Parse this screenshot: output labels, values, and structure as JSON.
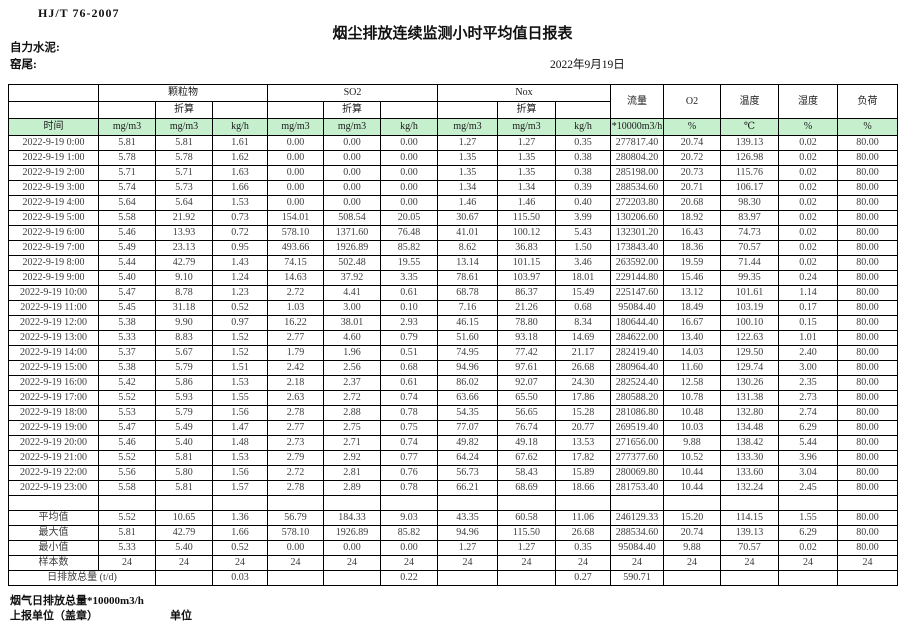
{
  "page": {
    "standard_code": "HJ/T 76-2007",
    "title": "烟尘排放连续监测小时平均值日报表",
    "company": "自力水泥:",
    "location": "窑尾:",
    "date": "2022年9月19日"
  },
  "table": {
    "time_header": "时间",
    "converted_label": "折算",
    "col_groups": [
      {
        "label": "颗粒物"
      },
      {
        "label": "SO2"
      },
      {
        "label": "Nox"
      }
    ],
    "single_columns": [
      "流量",
      "O2",
      "温度",
      "湿度",
      "负荷"
    ],
    "units": [
      "mg/m3",
      "mg/m3",
      "kg/h",
      "mg/m3",
      "mg/m3",
      "kg/h",
      "mg/m3",
      "mg/m3",
      "kg/h",
      "*10000m3/h",
      "%",
      "℃",
      "%",
      "%"
    ],
    "rows": [
      {
        "time": "2022-9-19 0:00",
        "values": [
          "5.81",
          "5.81",
          "1.61",
          "0.00",
          "0.00",
          "0.00",
          "1.27",
          "1.27",
          "0.35",
          "277817.40",
          "20.74",
          "139.13",
          "0.02",
          "80.00"
        ]
      },
      {
        "time": "2022-9-19 1:00",
        "values": [
          "5.78",
          "5.78",
          "1.62",
          "0.00",
          "0.00",
          "0.00",
          "1.35",
          "1.35",
          "0.38",
          "280804.20",
          "20.72",
          "126.98",
          "0.02",
          "80.00"
        ]
      },
      {
        "time": "2022-9-19 2:00",
        "values": [
          "5.71",
          "5.71",
          "1.63",
          "0.00",
          "0.00",
          "0.00",
          "1.35",
          "1.35",
          "0.38",
          "285198.00",
          "20.73",
          "115.76",
          "0.02",
          "80.00"
        ]
      },
      {
        "time": "2022-9-19 3:00",
        "values": [
          "5.74",
          "5.73",
          "1.66",
          "0.00",
          "0.00",
          "0.00",
          "1.34",
          "1.34",
          "0.39",
          "288534.60",
          "20.71",
          "106.17",
          "0.02",
          "80.00"
        ]
      },
      {
        "time": "2022-9-19 4:00",
        "values": [
          "5.64",
          "5.64",
          "1.53",
          "0.00",
          "0.00",
          "0.00",
          "1.46",
          "1.46",
          "0.40",
          "272203.80",
          "20.68",
          "98.30",
          "0.02",
          "80.00"
        ]
      },
      {
        "time": "2022-9-19 5:00",
        "values": [
          "5.58",
          "21.92",
          "0.73",
          "154.01",
          "508.54",
          "20.05",
          "30.67",
          "115.50",
          "3.99",
          "130206.60",
          "18.92",
          "83.97",
          "0.02",
          "80.00"
        ]
      },
      {
        "time": "2022-9-19 6:00",
        "values": [
          "5.46",
          "13.93",
          "0.72",
          "578.10",
          "1371.60",
          "76.48",
          "41.01",
          "100.12",
          "5.43",
          "132301.20",
          "16.43",
          "74.73",
          "0.02",
          "80.00"
        ]
      },
      {
        "time": "2022-9-19 7:00",
        "values": [
          "5.49",
          "23.13",
          "0.95",
          "493.66",
          "1926.89",
          "85.82",
          "8.62",
          "36.83",
          "1.50",
          "173843.40",
          "18.36",
          "70.57",
          "0.02",
          "80.00"
        ]
      },
      {
        "time": "2022-9-19 8:00",
        "values": [
          "5.44",
          "42.79",
          "1.43",
          "74.15",
          "502.48",
          "19.55",
          "13.14",
          "101.15",
          "3.46",
          "263592.00",
          "19.59",
          "71.44",
          "0.02",
          "80.00"
        ]
      },
      {
        "time": "2022-9-19 9:00",
        "values": [
          "5.40",
          "9.10",
          "1.24",
          "14.63",
          "37.92",
          "3.35",
          "78.61",
          "103.97",
          "18.01",
          "229144.80",
          "15.46",
          "99.35",
          "0.24",
          "80.00"
        ]
      },
      {
        "time": "2022-9-19 10:00",
        "values": [
          "5.47",
          "8.78",
          "1.23",
          "2.72",
          "4.41",
          "0.61",
          "68.78",
          "86.37",
          "15.49",
          "225147.60",
          "13.12",
          "101.61",
          "1.14",
          "80.00"
        ]
      },
      {
        "time": "2022-9-19 11:00",
        "values": [
          "5.45",
          "31.18",
          "0.52",
          "1.03",
          "3.00",
          "0.10",
          "7.16",
          "21.26",
          "0.68",
          "95084.40",
          "18.49",
          "103.19",
          "0.17",
          "80.00"
        ]
      },
      {
        "time": "2022-9-19 12:00",
        "values": [
          "5.38",
          "9.90",
          "0.97",
          "16.22",
          "38.01",
          "2.93",
          "46.15",
          "78.80",
          "8.34",
          "180644.40",
          "16.67",
          "100.10",
          "0.15",
          "80.00"
        ]
      },
      {
        "time": "2022-9-19 13:00",
        "values": [
          "5.33",
          "8.83",
          "1.52",
          "2.77",
          "4.60",
          "0.79",
          "51.60",
          "93.18",
          "14.69",
          "284622.00",
          "13.40",
          "122.63",
          "1.01",
          "80.00"
        ]
      },
      {
        "time": "2022-9-19 14:00",
        "values": [
          "5.37",
          "5.67",
          "1.52",
          "1.79",
          "1.96",
          "0.51",
          "74.95",
          "77.42",
          "21.17",
          "282419.40",
          "14.03",
          "129.50",
          "2.40",
          "80.00"
        ]
      },
      {
        "time": "2022-9-19 15:00",
        "values": [
          "5.38",
          "5.79",
          "1.51",
          "2.42",
          "2.56",
          "0.68",
          "94.96",
          "97.61",
          "26.68",
          "280964.40",
          "11.60",
          "129.74",
          "3.00",
          "80.00"
        ]
      },
      {
        "time": "2022-9-19 16:00",
        "values": [
          "5.42",
          "5.86",
          "1.53",
          "2.18",
          "2.37",
          "0.61",
          "86.02",
          "92.07",
          "24.30",
          "282524.40",
          "12.58",
          "130.26",
          "2.35",
          "80.00"
        ]
      },
      {
        "time": "2022-9-19 17:00",
        "values": [
          "5.52",
          "5.93",
          "1.55",
          "2.63",
          "2.72",
          "0.74",
          "63.66",
          "65.50",
          "17.86",
          "280588.20",
          "10.78",
          "131.38",
          "2.73",
          "80.00"
        ]
      },
      {
        "time": "2022-9-19 18:00",
        "values": [
          "5.53",
          "5.79",
          "1.56",
          "2.78",
          "2.88",
          "0.78",
          "54.35",
          "56.65",
          "15.28",
          "281086.80",
          "10.48",
          "132.80",
          "2.74",
          "80.00"
        ]
      },
      {
        "time": "2022-9-19 19:00",
        "values": [
          "5.47",
          "5.49",
          "1.47",
          "2.77",
          "2.75",
          "0.75",
          "77.07",
          "76.74",
          "20.77",
          "269519.40",
          "10.03",
          "134.48",
          "6.29",
          "80.00"
        ]
      },
      {
        "time": "2022-9-19 20:00",
        "values": [
          "5.46",
          "5.40",
          "1.48",
          "2.73",
          "2.71",
          "0.74",
          "49.82",
          "49.18",
          "13.53",
          "271656.00",
          "9.88",
          "138.42",
          "5.44",
          "80.00"
        ]
      },
      {
        "time": "2022-9-19 21:00",
        "values": [
          "5.52",
          "5.81",
          "1.53",
          "2.79",
          "2.92",
          "0.77",
          "64.24",
          "67.62",
          "17.82",
          "277377.60",
          "10.52",
          "133.30",
          "3.96",
          "80.00"
        ]
      },
      {
        "time": "2022-9-19 22:00",
        "values": [
          "5.56",
          "5.80",
          "1.56",
          "2.72",
          "2.81",
          "0.76",
          "56.73",
          "58.43",
          "15.89",
          "280069.80",
          "10.44",
          "133.60",
          "3.04",
          "80.00"
        ]
      },
      {
        "time": "2022-9-19 23:00",
        "values": [
          "5.58",
          "5.81",
          "1.57",
          "2.78",
          "2.89",
          "0.78",
          "66.21",
          "68.69",
          "18.66",
          "281753.40",
          "10.44",
          "132.24",
          "2.45",
          "80.00"
        ]
      }
    ],
    "summary": [
      {
        "label": "平均值",
        "values": [
          "5.52",
          "10.65",
          "1.36",
          "56.79",
          "184.33",
          "9.03",
          "43.35",
          "60.58",
          "11.06",
          "246129.33",
          "15.20",
          "114.15",
          "1.55",
          "80.00"
        ]
      },
      {
        "label": "最大值",
        "values": [
          "5.81",
          "42.79",
          "1.66",
          "578.10",
          "1926.89",
          "85.82",
          "94.96",
          "115.50",
          "26.68",
          "288534.60",
          "20.74",
          "139.13",
          "6.29",
          "80.00"
        ]
      },
      {
        "label": "最小值",
        "values": [
          "5.33",
          "5.40",
          "0.52",
          "0.00",
          "0.00",
          "0.00",
          "1.27",
          "1.27",
          "0.35",
          "95084.40",
          "9.88",
          "70.57",
          "0.02",
          "80.00"
        ]
      },
      {
        "label": "样本数",
        "values": [
          "24",
          "24",
          "24",
          "24",
          "24",
          "24",
          "24",
          "24",
          "24",
          "24",
          "24",
          "24",
          "24",
          "24"
        ]
      }
    ],
    "daily_total": {
      "label": "日排放总量 (t/d)",
      "values": [
        "",
        "0.03",
        "",
        "",
        "0.22",
        "",
        "",
        "0.27",
        "590.71",
        "",
        "",
        "",
        ""
      ]
    }
  },
  "footer": {
    "flue_gas_note": "烟气日排放总量*10000m3/h",
    "report_unit_label": "上报单位（盖章）",
    "unit_label": "单位"
  },
  "colors": {
    "units_row_green": "#c6efce",
    "border": "#000000"
  }
}
